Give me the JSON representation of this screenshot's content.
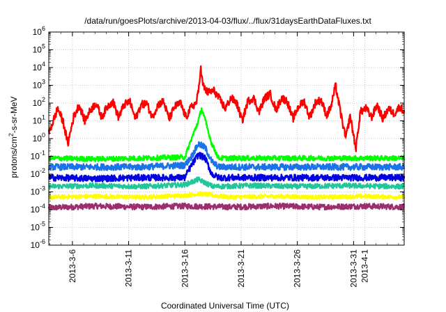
{
  "chart_data": {
    "type": "line",
    "title": "/data/run/goesPlots/archive/2013-04-03/flux/../flux/31daysEarthDataFluxes.txt",
    "xlabel": "Coordinated Universal Time (UTC)",
    "ylabel_main": "protons/cm",
    "ylabel_sup": "2",
    "ylabel_tail": "-s-sr-MeV",
    "y_scale": "log",
    "ylim": [
      1e-06,
      1000000.0
    ],
    "y_ticks": [
      {
        "base": "10",
        "exp": "-6",
        "v": -6
      },
      {
        "base": "10",
        "exp": "-5",
        "v": -5
      },
      {
        "base": "10",
        "exp": "-4",
        "v": -4
      },
      {
        "base": "10",
        "exp": "-3",
        "v": -3
      },
      {
        "base": "10",
        "exp": "-2",
        "v": -2
      },
      {
        "base": "10",
        "exp": "-1",
        "v": -1
      },
      {
        "base": "10",
        "exp": "0",
        "v": 0
      },
      {
        "base": "10",
        "exp": "1",
        "v": 1
      },
      {
        "base": "10",
        "exp": "2",
        "v": 2
      },
      {
        "base": "10",
        "exp": "3",
        "v": 3
      },
      {
        "base": "10",
        "exp": "4",
        "v": 4
      },
      {
        "base": "10",
        "exp": "5",
        "v": 5
      },
      {
        "base": "10",
        "exp": "6",
        "v": 6
      }
    ],
    "xlim_days": [
      3.9,
      35.5
    ],
    "x_ticks": [
      {
        "label": "2013-3-6",
        "day": 6
      },
      {
        "label": "2013-3-11",
        "day": 11
      },
      {
        "label": "2013-3-16",
        "day": 16
      },
      {
        "label": "2013-3-21",
        "day": 21
      },
      {
        "label": "2013-3-26",
        "day": 26
      },
      {
        "label": "2013-3-31",
        "day": 31
      },
      {
        "label": "2013-4-1",
        "day": 32
      }
    ],
    "grid": true,
    "series": [
      {
        "color": "#9b2f6e",
        "points": [
          [
            3.9,
            -3.9
          ],
          [
            8,
            -3.8
          ],
          [
            12,
            -3.85
          ],
          [
            16,
            -3.8
          ],
          [
            20,
            -3.85
          ],
          [
            24,
            -3.8
          ],
          [
            28,
            -3.85
          ],
          [
            32,
            -3.8
          ],
          [
            35.5,
            -3.85
          ]
        ]
      },
      {
        "color": "#ffff00",
        "points": [
          [
            3.9,
            -3.3
          ],
          [
            8,
            -3.25
          ],
          [
            12,
            -3.3
          ],
          [
            16,
            -3.2
          ],
          [
            17.2,
            -3.1
          ],
          [
            20,
            -3.3
          ],
          [
            24,
            -3.25
          ],
          [
            28,
            -3.3
          ],
          [
            32,
            -3.25
          ],
          [
            35.5,
            -3.3
          ]
        ]
      },
      {
        "color": "#22c69a",
        "points": [
          [
            3.9,
            -2.7
          ],
          [
            8,
            -2.65
          ],
          [
            12,
            -2.7
          ],
          [
            16,
            -2.6
          ],
          [
            17.2,
            -2.3
          ],
          [
            18.5,
            -2.7
          ],
          [
            22,
            -2.65
          ],
          [
            26,
            -2.7
          ],
          [
            30,
            -2.65
          ],
          [
            35.5,
            -2.7
          ]
        ]
      },
      {
        "color": "#1a74e8",
        "points": [
          [
            3.9,
            -1.6
          ],
          [
            8,
            -1.6
          ],
          [
            12,
            -1.6
          ],
          [
            16,
            -1.5
          ],
          [
            16.6,
            -1.0
          ],
          [
            17.2,
            -0.3
          ],
          [
            17.8,
            -0.5
          ],
          [
            18.4,
            -1.3
          ],
          [
            19,
            -1.6
          ],
          [
            24,
            -1.6
          ],
          [
            30,
            -1.6
          ],
          [
            35.5,
            -1.6
          ]
        ]
      },
      {
        "color": "#00ff00",
        "points": [
          [
            3.9,
            -1.1
          ],
          [
            8,
            -1.15
          ],
          [
            12,
            -1.1
          ],
          [
            16,
            -1.05
          ],
          [
            16.6,
            0.0
          ],
          [
            17.2,
            1.0
          ],
          [
            17.5,
            1.7
          ],
          [
            17.9,
            0.8
          ],
          [
            18.4,
            -0.3
          ],
          [
            19,
            -1.1
          ],
          [
            24,
            -1.1
          ],
          [
            30,
            -1.1
          ],
          [
            35.5,
            -1.1
          ]
        ]
      },
      {
        "color": "#0000e0",
        "points": [
          [
            3.9,
            -2.2
          ],
          [
            8,
            -2.25
          ],
          [
            12,
            -2.2
          ],
          [
            16,
            -2.2
          ],
          [
            16.5,
            -1.6
          ],
          [
            17.2,
            -0.9
          ],
          [
            17.8,
            -1.1
          ],
          [
            18.4,
            -2.0
          ],
          [
            19,
            -2.2
          ],
          [
            24,
            -2.2
          ],
          [
            30,
            -2.2
          ],
          [
            35.5,
            -2.2
          ]
        ]
      },
      {
        "color": "#ff0000",
        "points": [
          [
            3.9,
            0.3
          ],
          [
            4.3,
            1.0
          ],
          [
            4.7,
            1.7
          ],
          [
            5.2,
            0.9
          ],
          [
            5.6,
            -0.3
          ],
          [
            6.1,
            1.2
          ],
          [
            6.6,
            1.9
          ],
          [
            7.1,
            1.0
          ],
          [
            7.6,
            1.6
          ],
          [
            8.1,
            2.0
          ],
          [
            8.6,
            1.2
          ],
          [
            9.1,
            1.8
          ],
          [
            9.6,
            2.1
          ],
          [
            10.1,
            1.2
          ],
          [
            10.6,
            1.9
          ],
          [
            11.1,
            2.1
          ],
          [
            11.6,
            1.1
          ],
          [
            12.1,
            1.9
          ],
          [
            12.6,
            2.0
          ],
          [
            13.1,
            1.2
          ],
          [
            13.6,
            1.9
          ],
          [
            14.1,
            2.1
          ],
          [
            14.6,
            1.1
          ],
          [
            15.1,
            1.8
          ],
          [
            15.6,
            2.0
          ],
          [
            16.1,
            1.2
          ],
          [
            16.6,
            1.8
          ],
          [
            17.0,
            2.0
          ],
          [
            17.2,
            2.6
          ],
          [
            17.4,
            4.0
          ],
          [
            17.6,
            3.0
          ],
          [
            18.0,
            2.6
          ],
          [
            18.6,
            2.7
          ],
          [
            19.1,
            2.2
          ],
          [
            19.6,
            1.7
          ],
          [
            20.1,
            2.3
          ],
          [
            20.6,
            2.0
          ],
          [
            21.1,
            1.0
          ],
          [
            21.6,
            2.1
          ],
          [
            22.1,
            2.3
          ],
          [
            22.6,
            1.5
          ],
          [
            23.1,
            2.3
          ],
          [
            23.6,
            2.5
          ],
          [
            24.1,
            1.6
          ],
          [
            24.6,
            2.3
          ],
          [
            25.1,
            2.1
          ],
          [
            25.6,
            1.1
          ],
          [
            26.1,
            1.8
          ],
          [
            26.6,
            2.1
          ],
          [
            27.1,
            1.2
          ],
          [
            27.6,
            2.0
          ],
          [
            28.1,
            2.2
          ],
          [
            28.6,
            1.3
          ],
          [
            29.0,
            1.8
          ],
          [
            29.4,
            3.0
          ],
          [
            29.8,
            1.6
          ],
          [
            30.3,
            0.0
          ],
          [
            30.7,
            1.3
          ],
          [
            31.2,
            -0.6
          ],
          [
            31.6,
            1.5
          ],
          [
            32.1,
            1.7
          ],
          [
            32.6,
            1.2
          ],
          [
            33.1,
            1.9
          ],
          [
            33.6,
            1.1
          ],
          [
            34.1,
            1.7
          ],
          [
            34.6,
            1.4
          ],
          [
            35.1,
            1.8
          ],
          [
            35.5,
            1.5
          ]
        ]
      }
    ]
  }
}
